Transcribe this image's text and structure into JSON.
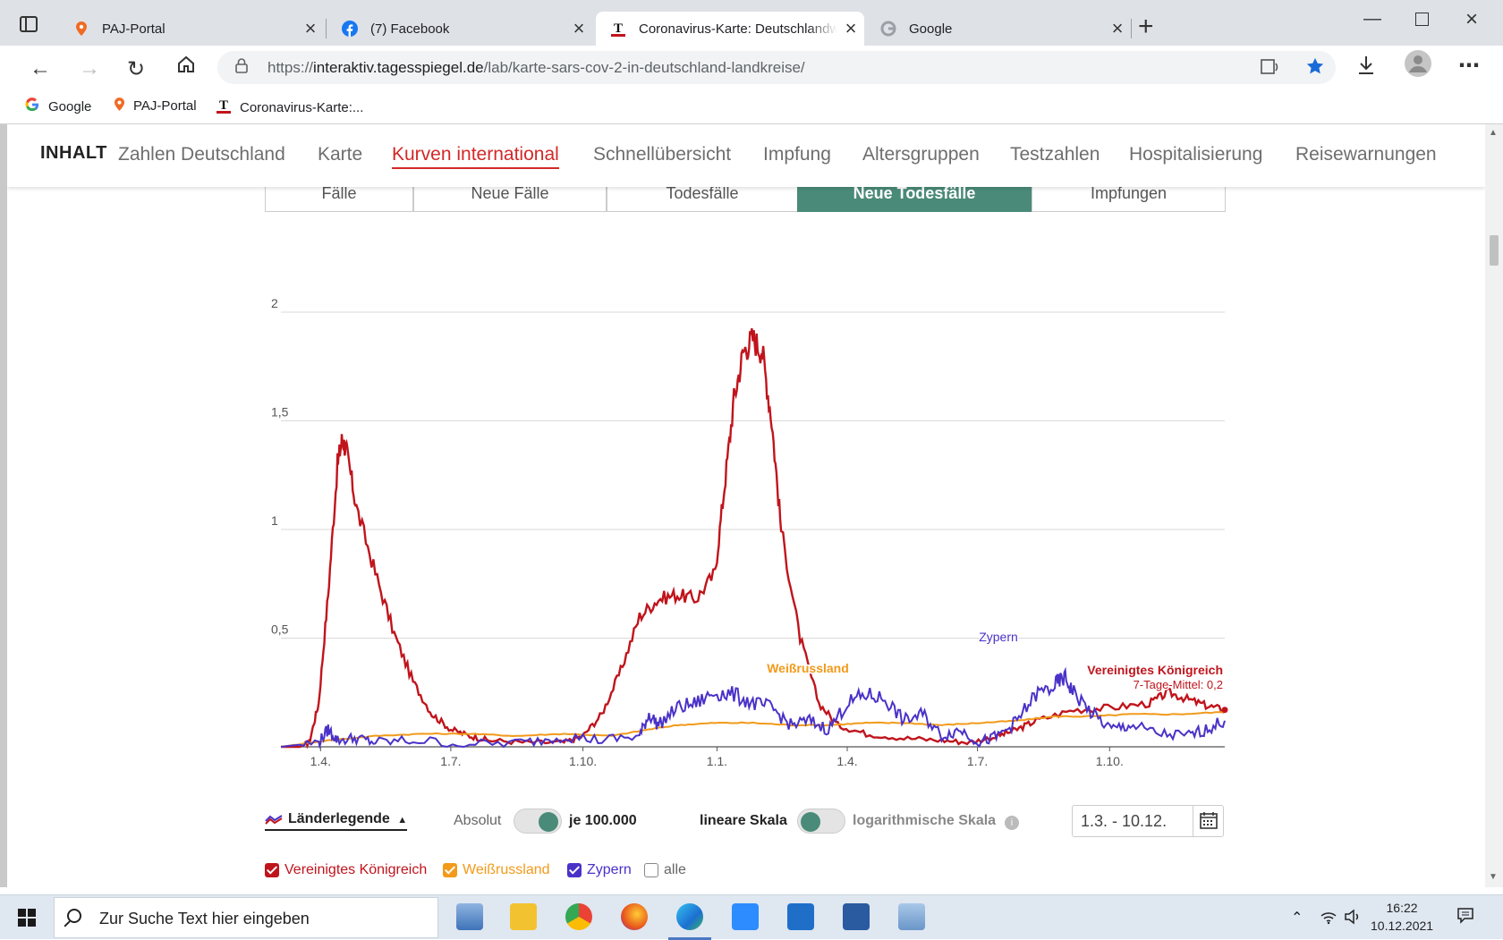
{
  "browser": {
    "tabs": [
      {
        "title": "PAJ-Portal",
        "active": false
      },
      {
        "title": "(7) Facebook",
        "active": false
      },
      {
        "title": "Coronavirus-Karte: Deutschlandweit",
        "active": true
      },
      {
        "title": "Google",
        "active": false
      }
    ],
    "url_prefix": "https://",
    "url_domain": "interaktiv.tagesspiegel.de",
    "url_path": "/lab/karte-sars-cov-2-in-deutschland-landkreise/",
    "bookmarks": [
      {
        "label": "Google",
        "icon": "google-icon"
      },
      {
        "label": "PAJ-Portal",
        "icon": "map-pin-icon"
      },
      {
        "label": "Coronavirus-Karte:...",
        "icon": "tagesspiegel-icon"
      }
    ]
  },
  "nav": {
    "label": "INHALT",
    "items": [
      "Zahlen Deutschland",
      "Karte",
      "Kurven international",
      "Schnellübersicht",
      "Impfung",
      "Altersgruppen",
      "Testzahlen",
      "Hospitalisierung",
      "Reisewarnungen"
    ],
    "active_index": 2
  },
  "metric_tabs": {
    "items": [
      "Fälle",
      "Neue Fälle",
      "Todesfälle",
      "Neue Todesfälle",
      "Impfungen"
    ],
    "active_index": 3
  },
  "chart_data": {
    "type": "line",
    "y_ticks": [
      "2",
      "1,5",
      "1",
      "0,5"
    ],
    "ylim": [
      0,
      2
    ],
    "x_ticks": [
      "1.4.",
      "1.7.",
      "1.10.",
      "1.1.",
      "1.4.",
      "1.7.",
      "1.10."
    ],
    "grid": true,
    "series": [
      {
        "name": "Vereinigtes Königreich",
        "color": "#c0141c",
        "label": "Vereinigtes Königreich",
        "sublabel": "7-Tage-Mittel: 0,2",
        "points": [
          [
            0,
            0
          ],
          [
            0.02,
            0
          ],
          [
            0.03,
            0.02
          ],
          [
            0.04,
            0.2
          ],
          [
            0.05,
            0.7
          ],
          [
            0.06,
            1.3
          ],
          [
            0.065,
            1.42
          ],
          [
            0.07,
            1.35
          ],
          [
            0.08,
            1.1
          ],
          [
            0.1,
            0.8
          ],
          [
            0.12,
            0.52
          ],
          [
            0.14,
            0.3
          ],
          [
            0.16,
            0.15
          ],
          [
            0.18,
            0.08
          ],
          [
            0.2,
            0.05
          ],
          [
            0.22,
            0.03
          ],
          [
            0.26,
            0.02
          ],
          [
            0.3,
            0.02
          ],
          [
            0.32,
            0.05
          ],
          [
            0.34,
            0.15
          ],
          [
            0.36,
            0.35
          ],
          [
            0.38,
            0.6
          ],
          [
            0.4,
            0.68
          ],
          [
            0.42,
            0.7
          ],
          [
            0.44,
            0.68
          ],
          [
            0.46,
            0.8
          ],
          [
            0.47,
            1.2
          ],
          [
            0.48,
            1.6
          ],
          [
            0.49,
            1.82
          ],
          [
            0.5,
            1.88
          ],
          [
            0.51,
            1.82
          ],
          [
            0.52,
            1.5
          ],
          [
            0.53,
            1.0
          ],
          [
            0.55,
            0.5
          ],
          [
            0.57,
            0.2
          ],
          [
            0.59,
            0.1
          ],
          [
            0.62,
            0.06
          ],
          [
            0.66,
            0.04
          ],
          [
            0.7,
            0.03
          ],
          [
            0.73,
            0.02
          ],
          [
            0.76,
            0.05
          ],
          [
            0.78,
            0.08
          ],
          [
            0.8,
            0.12
          ],
          [
            0.84,
            0.17
          ],
          [
            0.88,
            0.18
          ],
          [
            0.92,
            0.2
          ],
          [
            0.94,
            0.25
          ],
          [
            0.96,
            0.22
          ],
          [
            0.98,
            0.19
          ],
          [
            1.0,
            0.17
          ]
        ]
      },
      {
        "name": "Weißrussland",
        "color": "#f29a1a",
        "label": "Weißrussland",
        "points": [
          [
            0,
            0
          ],
          [
            0.05,
            0.03
          ],
          [
            0.1,
            0.05
          ],
          [
            0.15,
            0.06
          ],
          [
            0.2,
            0.06
          ],
          [
            0.25,
            0.05
          ],
          [
            0.3,
            0.06
          ],
          [
            0.35,
            0.05
          ],
          [
            0.39,
            0.08
          ],
          [
            0.42,
            0.1
          ],
          [
            0.46,
            0.11
          ],
          [
            0.5,
            0.11
          ],
          [
            0.54,
            0.1
          ],
          [
            0.58,
            0.1
          ],
          [
            0.62,
            0.11
          ],
          [
            0.66,
            0.11
          ],
          [
            0.7,
            0.1
          ],
          [
            0.74,
            0.11
          ],
          [
            0.78,
            0.12
          ],
          [
            0.82,
            0.14
          ],
          [
            0.86,
            0.14
          ],
          [
            0.9,
            0.15
          ],
          [
            0.95,
            0.15
          ],
          [
            1.0,
            0.16
          ]
        ]
      },
      {
        "name": "Zypern",
        "color": "#4a32c8",
        "label": "Zypern",
        "points": [
          [
            0,
            0
          ],
          [
            0.04,
            0.02
          ],
          [
            0.05,
            0.08
          ],
          [
            0.06,
            0.03
          ],
          [
            0.08,
            0.04
          ],
          [
            0.1,
            0.02
          ],
          [
            0.14,
            0.03
          ],
          [
            0.2,
            0.01
          ],
          [
            0.26,
            0.02
          ],
          [
            0.3,
            0.05
          ],
          [
            0.34,
            0.03
          ],
          [
            0.38,
            0.05
          ],
          [
            0.39,
            0.15
          ],
          [
            0.4,
            0.1
          ],
          [
            0.42,
            0.18
          ],
          [
            0.44,
            0.2
          ],
          [
            0.46,
            0.25
          ],
          [
            0.48,
            0.24
          ],
          [
            0.5,
            0.2
          ],
          [
            0.52,
            0.18
          ],
          [
            0.54,
            0.1
          ],
          [
            0.56,
            0.12
          ],
          [
            0.58,
            0.08
          ],
          [
            0.6,
            0.2
          ],
          [
            0.62,
            0.24
          ],
          [
            0.64,
            0.22
          ],
          [
            0.66,
            0.12
          ],
          [
            0.68,
            0.15
          ],
          [
            0.7,
            0.05
          ],
          [
            0.72,
            0.08
          ],
          [
            0.74,
            0.02
          ],
          [
            0.76,
            0.05
          ],
          [
            0.78,
            0.12
          ],
          [
            0.8,
            0.24
          ],
          [
            0.82,
            0.28
          ],
          [
            0.83,
            0.32
          ],
          [
            0.84,
            0.25
          ],
          [
            0.86,
            0.15
          ],
          [
            0.88,
            0.08
          ],
          [
            0.9,
            0.1
          ],
          [
            0.93,
            0.06
          ],
          [
            0.96,
            0.05
          ],
          [
            0.98,
            0.08
          ],
          [
            1.0,
            0.12
          ]
        ]
      }
    ]
  },
  "controls": {
    "legend_toggle": "Länderlegende",
    "absolut": "Absolut",
    "je100k": "je 100.000",
    "linear": "lineare Skala",
    "log": "logarithmische Skala",
    "info": "i",
    "date_range": "1.3. - 10.12.",
    "checkboxes": [
      {
        "label": "Vereinigtes Königreich",
        "checked": true,
        "color": "#c0141c"
      },
      {
        "label": "Weißrussland",
        "checked": true,
        "color": "#f29a1a"
      },
      {
        "label": "Zypern",
        "checked": true,
        "color": "#4a32c8"
      },
      {
        "label": "alle",
        "checked": false,
        "color": "#666666"
      }
    ]
  },
  "taskbar": {
    "search_placeholder": "Zur Suche Text hier eingeben",
    "time": "16:22",
    "date": "10.12.2021"
  }
}
